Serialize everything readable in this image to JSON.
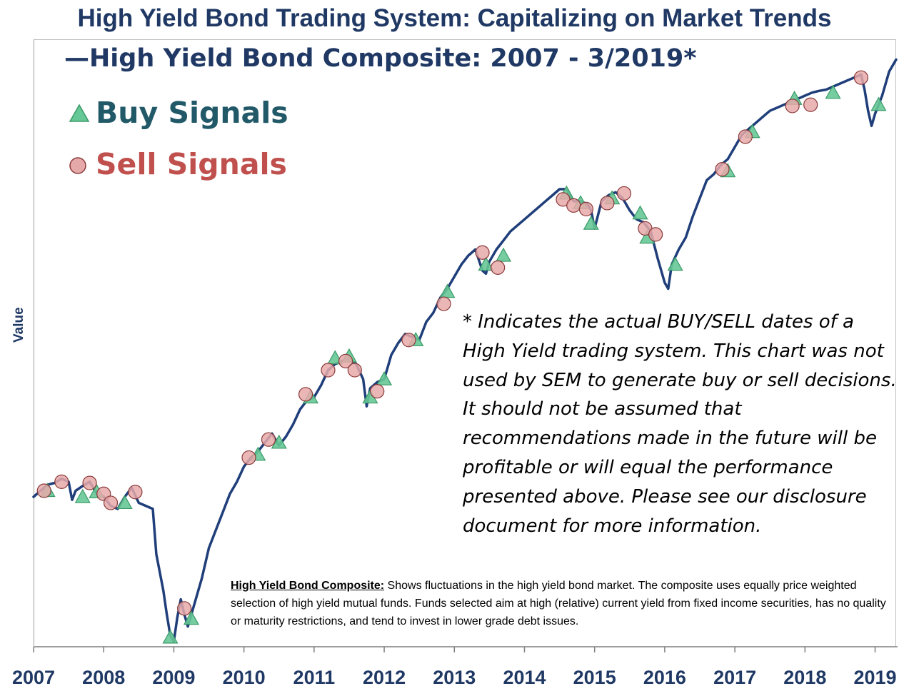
{
  "title": "High Yield Bond Trading System: Capitalizing on Market Trends",
  "legend": {
    "series_label": "—High Yield Bond Composite: 2007 - 3/2019*",
    "buy_label": "Buy Signals",
    "sell_label": "Sell Signals"
  },
  "note": "* Indicates the actual BUY/SELL dates of a High Yield trading system.  This chart was not used by SEM to generate buy or sell decisions.  It should not be assumed that recommendations made in the future will be profitable or will equal the performance presented above.  Please see our disclosure document for more information.",
  "footnote": {
    "label": "High Yield Bond Composite:",
    "text": "  Shows fluctuations in the high yield bond market.  The composite uses equally price weighted selection of high yield mutual funds. Funds selected aim at high (relative) current yield from fixed income securities, has no quality or maturity restrictions, and tend to invest in lower grade debt issues."
  },
  "colors": {
    "line": "#1f3e7a",
    "buy_fill": "#66c896",
    "sell_fill": "#e6a9a9",
    "title": "#1f3864",
    "buy_text": "#215968",
    "sell_text": "#c0504d"
  },
  "chart_data": {
    "type": "line",
    "title": "High Yield Bond Trading System: Capitalizing on Market Trends",
    "xlabel": "",
    "ylabel": "Value",
    "xlim": [
      2007,
      2019.3
    ],
    "ylim": [
      0,
      100
    ],
    "y_ticks_labeled": false,
    "x_ticks": [
      "2007",
      "2008",
      "2009",
      "2010",
      "2011",
      "2012",
      "2013",
      "2014",
      "2015",
      "2016",
      "2017",
      "2018",
      "2019"
    ],
    "series": [
      {
        "name": "High Yield Bond Composite: 2007 - 3/2019*",
        "x": [
          2007.0,
          2007.1,
          2007.2,
          2007.3,
          2007.4,
          2007.5,
          2007.55,
          2007.6,
          2007.7,
          2007.8,
          2007.9,
          2008.0,
          2008.1,
          2008.2,
          2008.3,
          2008.4,
          2008.5,
          2008.6,
          2008.7,
          2008.75,
          2008.85,
          2008.9,
          2008.95,
          2009.0,
          2009.05,
          2009.1,
          2009.15,
          2009.2,
          2009.3,
          2009.4,
          2009.5,
          2009.6,
          2009.7,
          2009.8,
          2009.9,
          2010.0,
          2010.1,
          2010.2,
          2010.3,
          2010.4,
          2010.5,
          2010.6,
          2010.7,
          2010.8,
          2010.9,
          2011.0,
          2011.1,
          2011.2,
          2011.3,
          2011.4,
          2011.5,
          2011.6,
          2011.7,
          2011.75,
          2011.8,
          2011.9,
          2012.0,
          2012.1,
          2012.2,
          2012.3,
          2012.4,
          2012.5,
          2012.6,
          2012.7,
          2012.8,
          2012.9,
          2013.0,
          2013.1,
          2013.2,
          2013.3,
          2013.4,
          2013.45,
          2013.5,
          2013.6,
          2013.7,
          2013.8,
          2013.9,
          2014.0,
          2014.1,
          2014.2,
          2014.3,
          2014.4,
          2014.5,
          2014.6,
          2014.7,
          2014.8,
          2014.9,
          2014.95,
          2015.0,
          2015.1,
          2015.2,
          2015.3,
          2015.4,
          2015.5,
          2015.6,
          2015.7,
          2015.8,
          2015.9,
          2016.0,
          2016.05,
          2016.1,
          2016.2,
          2016.3,
          2016.4,
          2016.5,
          2016.6,
          2016.7,
          2016.8,
          2016.9,
          2017.0,
          2017.1,
          2017.2,
          2017.3,
          2017.4,
          2017.5,
          2017.6,
          2017.7,
          2017.8,
          2017.9,
          2018.0,
          2018.1,
          2018.2,
          2018.3,
          2018.4,
          2018.5,
          2018.6,
          2018.7,
          2018.8,
          2018.85,
          2018.9,
          2018.95,
          2019.0,
          2019.1,
          2019.2,
          2019.3
        ],
        "values": [
          24.5,
          25.5,
          26.5,
          26.8,
          27.5,
          27.0,
          24.0,
          25.5,
          26.3,
          27.0,
          25.0,
          24.5,
          23.0,
          22.5,
          24.5,
          26.0,
          23.5,
          23.0,
          22.5,
          15.0,
          9.0,
          5.0,
          1.5,
          0.5,
          4.5,
          7.5,
          5.0,
          3.0,
          7.0,
          11.0,
          16.0,
          19.0,
          22.0,
          25.0,
          27.0,
          29.5,
          31.0,
          32.0,
          33.5,
          35.0,
          33.0,
          34.5,
          36.5,
          39.0,
          40.5,
          41.0,
          43.0,
          45.5,
          46.5,
          47.0,
          47.5,
          46.5,
          44.0,
          39.5,
          42.5,
          43.5,
          44.0,
          48.0,
          50.0,
          51.5,
          51.0,
          50.5,
          53.5,
          55.0,
          57.5,
          59.0,
          61.0,
          63.0,
          64.5,
          65.5,
          62.0,
          61.5,
          63.5,
          65.5,
          67.0,
          68.5,
          69.5,
          70.5,
          71.5,
          72.5,
          73.5,
          74.5,
          75.5,
          75.5,
          73.5,
          73.5,
          73.0,
          72.0,
          69.0,
          73.5,
          74.5,
          75.0,
          74.0,
          72.0,
          70.5,
          70.0,
          68.5,
          64.0,
          60.0,
          59.0,
          63.0,
          65.5,
          67.5,
          71.0,
          74.0,
          77.0,
          78.0,
          79.5,
          80.5,
          82.5,
          84.5,
          85.5,
          86.5,
          87.5,
          88.5,
          89.0,
          89.5,
          90.0,
          90.5,
          91.0,
          91.5,
          91.8,
          92.0,
          92.5,
          93.0,
          93.5,
          94.0,
          94.5,
          92.0,
          88.5,
          86.0,
          88.0,
          91.0,
          95.0,
          97.0
        ]
      }
    ],
    "buy_signals": [
      {
        "x": 2007.2,
        "y": 25.5
      },
      {
        "x": 2007.7,
        "y": 24.5
      },
      {
        "x": 2007.9,
        "y": 25.3
      },
      {
        "x": 2008.3,
        "y": 23.5
      },
      {
        "x": 2008.95,
        "y": 1.2
      },
      {
        "x": 2009.25,
        "y": 4.3
      },
      {
        "x": 2010.2,
        "y": 31.5
      },
      {
        "x": 2010.5,
        "y": 33.5
      },
      {
        "x": 2010.95,
        "y": 41.0
      },
      {
        "x": 2011.3,
        "y": 47.5
      },
      {
        "x": 2011.5,
        "y": 47.8
      },
      {
        "x": 2011.8,
        "y": 41.0
      },
      {
        "x": 2012.0,
        "y": 44.0
      },
      {
        "x": 2012.45,
        "y": 50.5
      },
      {
        "x": 2012.9,
        "y": 58.5
      },
      {
        "x": 2013.45,
        "y": 63.0
      },
      {
        "x": 2013.7,
        "y": 64.5
      },
      {
        "x": 2014.6,
        "y": 74.8
      },
      {
        "x": 2014.8,
        "y": 73.2
      },
      {
        "x": 2014.95,
        "y": 69.8
      },
      {
        "x": 2015.25,
        "y": 74.0
      },
      {
        "x": 2015.65,
        "y": 71.5
      },
      {
        "x": 2015.75,
        "y": 67.5
      },
      {
        "x": 2016.15,
        "y": 63.0
      },
      {
        "x": 2016.9,
        "y": 78.5
      },
      {
        "x": 2017.25,
        "y": 85.0
      },
      {
        "x": 2017.85,
        "y": 90.5
      },
      {
        "x": 2018.4,
        "y": 91.5
      },
      {
        "x": 2019.05,
        "y": 89.5
      }
    ],
    "sell_signals": [
      {
        "x": 2007.15,
        "y": 25.5
      },
      {
        "x": 2007.4,
        "y": 27.0
      },
      {
        "x": 2007.8,
        "y": 26.8
      },
      {
        "x": 2008.0,
        "y": 25.0
      },
      {
        "x": 2008.1,
        "y": 23.5
      },
      {
        "x": 2008.45,
        "y": 25.3
      },
      {
        "x": 2009.15,
        "y": 6.0
      },
      {
        "x": 2010.07,
        "y": 31.0
      },
      {
        "x": 2010.35,
        "y": 34.0
      },
      {
        "x": 2010.88,
        "y": 41.5
      },
      {
        "x": 2011.2,
        "y": 45.5
      },
      {
        "x": 2011.45,
        "y": 47.0
      },
      {
        "x": 2011.58,
        "y": 45.5
      },
      {
        "x": 2011.9,
        "y": 42.0
      },
      {
        "x": 2012.35,
        "y": 50.5
      },
      {
        "x": 2012.85,
        "y": 56.5
      },
      {
        "x": 2013.4,
        "y": 65.0
      },
      {
        "x": 2013.62,
        "y": 62.5
      },
      {
        "x": 2014.55,
        "y": 73.8
      },
      {
        "x": 2014.7,
        "y": 72.8
      },
      {
        "x": 2014.88,
        "y": 72.2
      },
      {
        "x": 2015.18,
        "y": 73.2
      },
      {
        "x": 2015.42,
        "y": 74.8
      },
      {
        "x": 2015.72,
        "y": 69.0
      },
      {
        "x": 2015.87,
        "y": 68.0
      },
      {
        "x": 2016.82,
        "y": 78.8
      },
      {
        "x": 2017.15,
        "y": 84.2
      },
      {
        "x": 2017.82,
        "y": 89.3
      },
      {
        "x": 2018.08,
        "y": 89.5
      },
      {
        "x": 2018.8,
        "y": 94.0
      }
    ]
  }
}
